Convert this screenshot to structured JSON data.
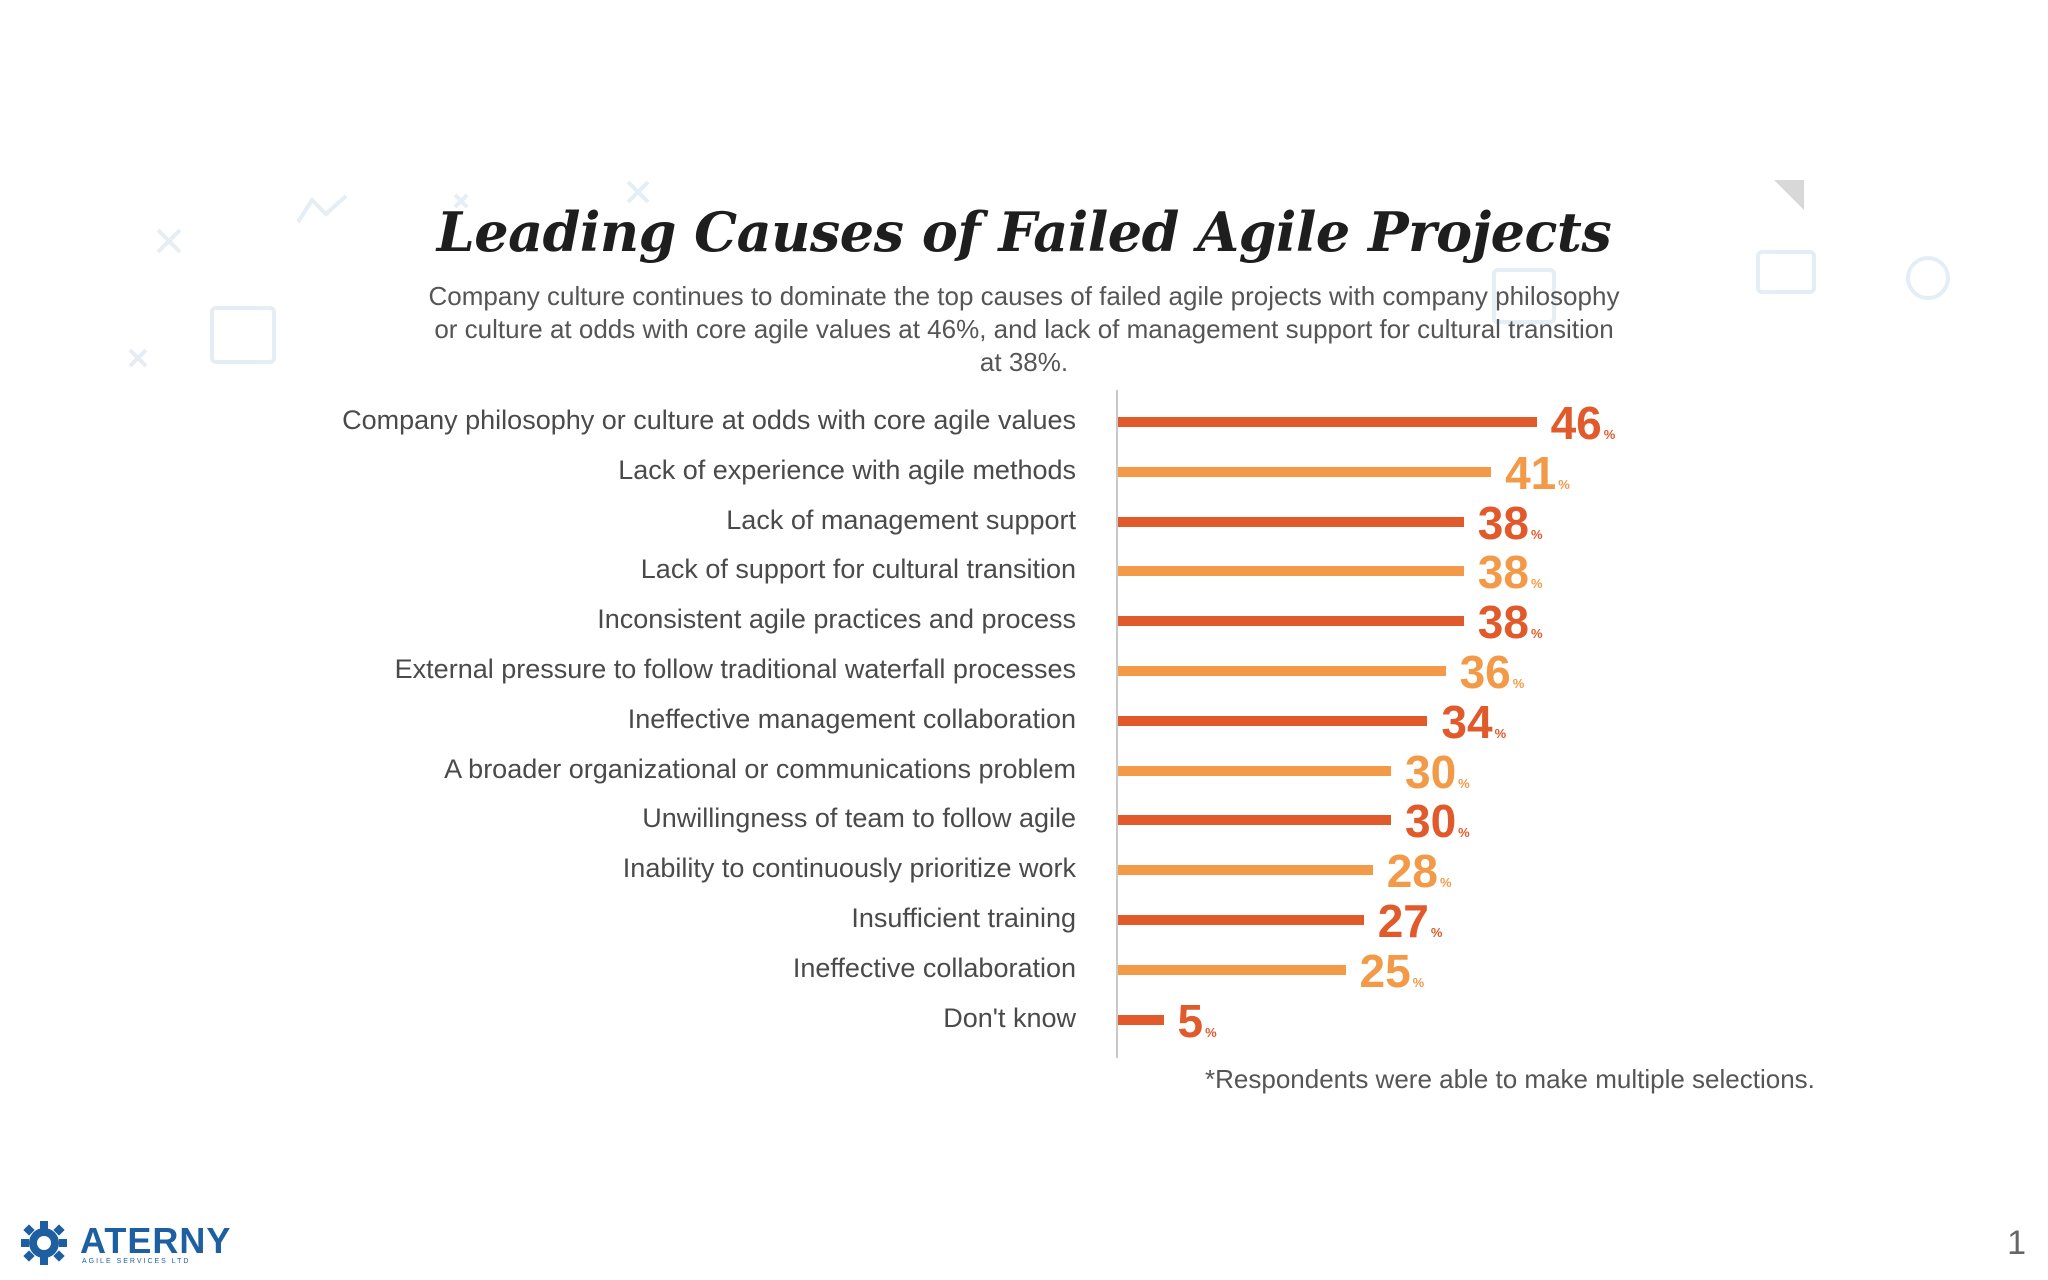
{
  "chart_data": {
    "type": "bar",
    "orientation": "horizontal",
    "title": "Leading Causes of Failed Agile Projects",
    "subtitle": "Company culture continues to dominate the top causes of failed agile projects with company philosophy or culture at odds with core agile values at 46%, and lack of management support for cultural transition at 38%.",
    "categories": [
      "Company philosophy or culture at odds with core agile values",
      "Lack of experience with agile methods",
      "Lack of management support",
      "Lack of support for cultural transition",
      "Inconsistent agile practices and process",
      "External pressure to follow traditional waterfall processes",
      "Ineffective management collaboration",
      "A broader organizational or communications problem",
      "Unwillingness of team to follow agile",
      "Inability to continuously prioritize work",
      "Insufficient training",
      "Ineffective collaboration",
      "Don't know"
    ],
    "values": [
      46,
      41,
      38,
      38,
      38,
      36,
      34,
      30,
      30,
      28,
      27,
      25,
      5
    ],
    "value_suffix": "%",
    "colors": [
      "#e05a2b",
      "#f39a48"
    ],
    "footnote": "*Respondents were able to make multiple selections."
  },
  "branding": {
    "logo_text": "ATERNY",
    "logo_tagline": "AGILE SERVICES LTD",
    "logo_color": "#1d5fa0"
  },
  "page_number": "1"
}
